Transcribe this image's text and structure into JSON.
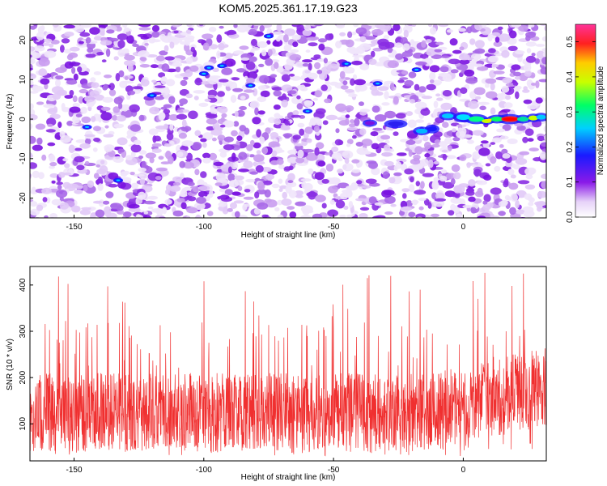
{
  "figure": {
    "title": "KOM5.2025.361.17.19.G23"
  },
  "chart_data": [
    {
      "type": "heatmap",
      "title": "KOM5.2025.361.17.19.G23",
      "xlabel": "Height of straight line (km)",
      "ylabel": "Frequency (Hz)",
      "xlim": [
        -167,
        32
      ],
      "ylim": [
        -25,
        24
      ],
      "xticks": [
        -150,
        -100,
        -50,
        0
      ],
      "yticks": [
        -20,
        -10,
        0,
        10,
        20
      ],
      "xtick_labels": [
        "-150",
        "-100",
        "-50",
        "0"
      ],
      "ytick_labels": [
        "-20",
        "-10",
        "0",
        "10",
        "20"
      ],
      "colorbar": {
        "label": "Normalized spectral amplitude",
        "range": [
          0.0,
          0.55
        ],
        "ticks": [
          0.0,
          0.1,
          0.2,
          0.3,
          0.4,
          0.5
        ],
        "tick_labels": [
          "0.0",
          "0.1",
          "0.2",
          "0.3",
          "0.4",
          "0.5"
        ],
        "colormap": "rainbow (white, violet, blue, cyan, green, yellow, red, magenta)"
      },
      "description": "Background noise of violet patches; a concentrated signal band near 0 Hz from about -35 km to 30 km, peaking (red) around 15–20 km"
    },
    {
      "type": "line",
      "xlabel": "Height of straight line (km)",
      "ylabel": "SNR (10 * v/v)",
      "xlim": [
        -167,
        32
      ],
      "ylim": [
        20,
        440
      ],
      "xticks": [
        -150,
        -100,
        -50,
        0
      ],
      "yticks": [
        100,
        200,
        300,
        400
      ],
      "xtick_labels": [
        "-150",
        "-100",
        "-50",
        "0"
      ],
      "ytick_labels": [
        "100",
        "200",
        "300",
        "400"
      ],
      "series": [
        {
          "name": "SNR",
          "color": "#f03030",
          "description": "Dense noisy trace oscillating mostly between about 40 and 300, with spikes up to about 430; baseline rises toward the right (x > 0)"
        }
      ]
    }
  ]
}
